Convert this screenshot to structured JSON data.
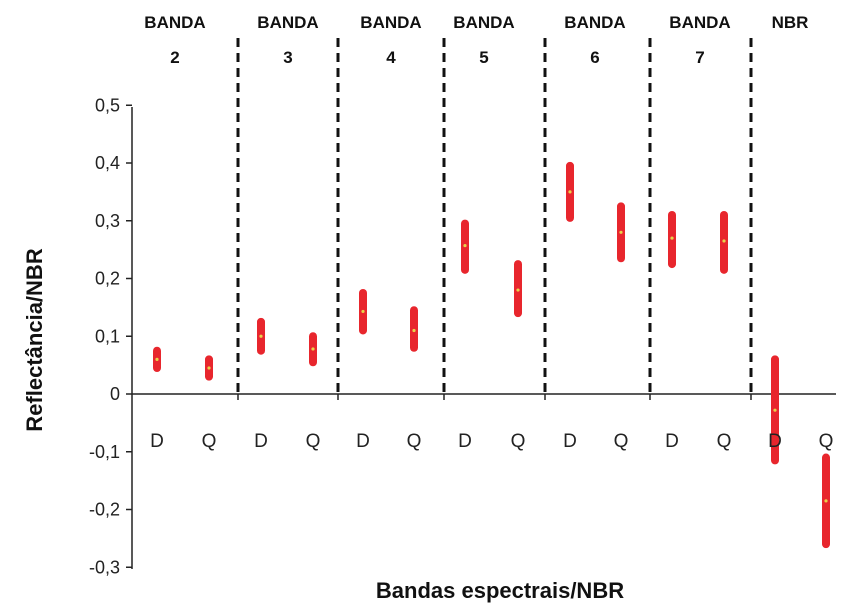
{
  "chart_data": {
    "type": "range",
    "xlabel": "Bandas espectrais/NBR",
    "ylabel": "Reflectância/NBR",
    "ylim": [
      -0.3,
      0.5
    ],
    "y_ticks": [
      "0,5",
      "0,4",
      "0,3",
      "0,2",
      "0,1",
      "0",
      "-0,1",
      "-0,2",
      "-0,3"
    ],
    "groups": [
      {
        "label1": "BANDA",
        "label2": "2"
      },
      {
        "label1": "BANDA",
        "label2": "3"
      },
      {
        "label1": "BANDA",
        "label2": "4"
      },
      {
        "label1": "BANDA",
        "label2": "5"
      },
      {
        "label1": "BANDA",
        "label2": "6"
      },
      {
        "label1": "BANDA",
        "label2": "7"
      },
      {
        "label1": "NBR",
        "label2": ""
      }
    ],
    "categories": [
      "D",
      "Q",
      "D",
      "Q",
      "D",
      "Q",
      "D",
      "Q",
      "D",
      "Q",
      "D",
      "Q",
      "D",
      "Q"
    ],
    "bars": [
      {
        "group": "BANDA 2",
        "cat": "D",
        "min": 0.045,
        "max": 0.075,
        "mean": 0.06
      },
      {
        "group": "BANDA 2",
        "cat": "Q",
        "min": 0.03,
        "max": 0.06,
        "mean": 0.045
      },
      {
        "group": "BANDA 3",
        "cat": "D",
        "min": 0.075,
        "max": 0.125,
        "mean": 0.1
      },
      {
        "group": "BANDA 3",
        "cat": "Q",
        "min": 0.055,
        "max": 0.1,
        "mean": 0.078
      },
      {
        "group": "BANDA 4",
        "cat": "D",
        "min": 0.11,
        "max": 0.175,
        "mean": 0.143
      },
      {
        "group": "BANDA 4",
        "cat": "Q",
        "min": 0.08,
        "max": 0.145,
        "mean": 0.11
      },
      {
        "group": "BANDA 5",
        "cat": "D",
        "min": 0.215,
        "max": 0.295,
        "mean": 0.257
      },
      {
        "group": "BANDA 5",
        "cat": "Q",
        "min": 0.14,
        "max": 0.225,
        "mean": 0.18
      },
      {
        "group": "BANDA 6",
        "cat": "D",
        "min": 0.305,
        "max": 0.395,
        "mean": 0.35
      },
      {
        "group": "BANDA 6",
        "cat": "Q",
        "min": 0.235,
        "max": 0.325,
        "mean": 0.28
      },
      {
        "group": "BANDA 7",
        "cat": "D",
        "min": 0.225,
        "max": 0.31,
        "mean": 0.27
      },
      {
        "group": "BANDA 7",
        "cat": "Q",
        "min": 0.215,
        "max": 0.31,
        "mean": 0.265
      },
      {
        "group": "NBR",
        "cat": "D",
        "min": -0.115,
        "max": 0.06,
        "mean": -0.028
      },
      {
        "group": "NBR",
        "cat": "Q",
        "min": -0.26,
        "max": -0.11,
        "mean": -0.185
      }
    ],
    "bar_color": "#e8262d",
    "mean_color": "#e8d24a",
    "divider_style": "dashed",
    "grid": false
  }
}
